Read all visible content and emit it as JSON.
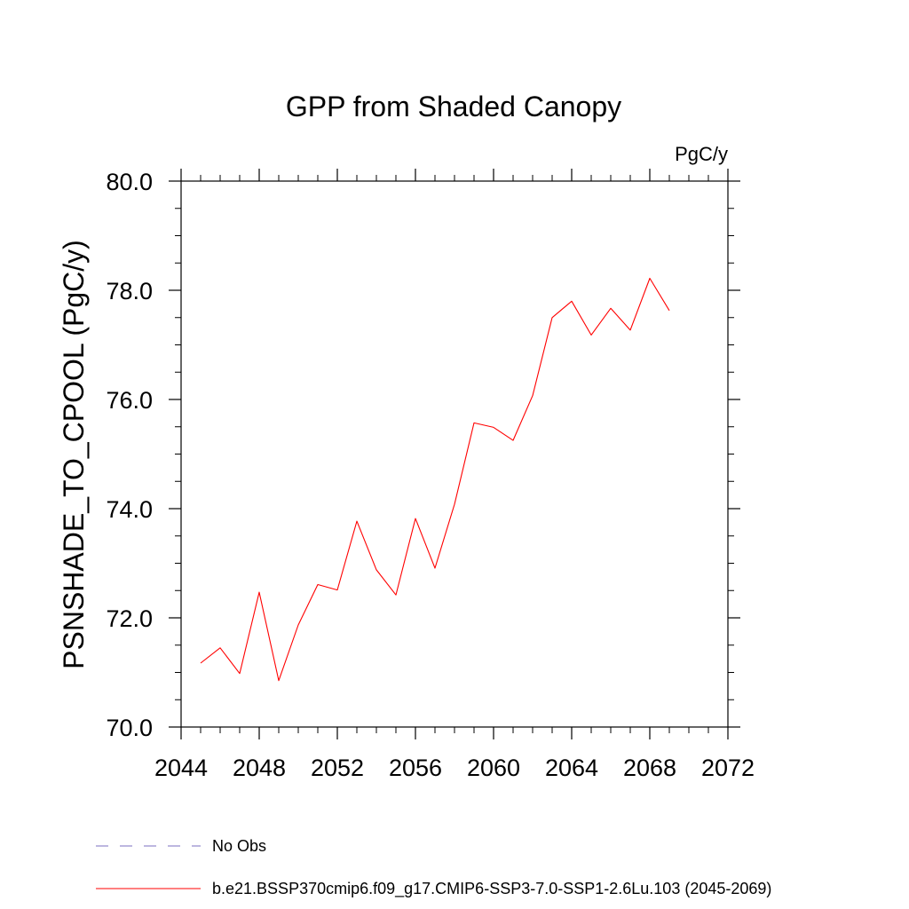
{
  "chart_data": {
    "type": "line",
    "title": "GPP from Shaded Canopy",
    "units": "PgC/y",
    "ylabel": "PSNSHADE_TO_CPOOL  (PgC/y)",
    "xlabel": "",
    "xlim": [
      2044,
      2072
    ],
    "ylim": [
      70.0,
      80.0
    ],
    "x_ticks": [
      2044,
      2048,
      2052,
      2056,
      2060,
      2064,
      2068,
      2072
    ],
    "x_tick_labels": [
      "2044",
      "2048",
      "2052",
      "2056",
      "2060",
      "2064",
      "2068",
      "2072"
    ],
    "y_ticks": [
      70,
      72,
      74,
      76,
      78,
      80
    ],
    "y_tick_labels": [
      "70.0",
      "72.0",
      "74.0",
      "76.0",
      "78.0",
      "80.0"
    ],
    "grid": false,
    "legend_position": "bottom",
    "series": [
      {
        "name": "b.e21.BSSP370cmip6.f09_g17.CMIP6-SSP3-7.0-SSP1-2.6Lu.103 (2045-2069)",
        "color": "#ff0000",
        "style": "solid",
        "x": [
          2045,
          2046,
          2047,
          2048,
          2049,
          2050,
          2051,
          2052,
          2053,
          2054,
          2055,
          2056,
          2057,
          2058,
          2059,
          2060,
          2061,
          2062,
          2063,
          2064,
          2065,
          2066,
          2067,
          2068,
          2069
        ],
        "y": [
          71.17,
          71.45,
          70.98,
          72.47,
          70.85,
          71.87,
          72.61,
          72.51,
          73.77,
          72.88,
          72.42,
          73.82,
          72.91,
          74.08,
          75.57,
          75.49,
          75.25,
          76.07,
          77.5,
          77.8,
          77.18,
          77.67,
          77.27,
          78.22,
          77.63
        ]
      }
    ],
    "legend": [
      {
        "label": "No Obs",
        "color": "#7b6fc0",
        "style": "dashed"
      },
      {
        "label": "b.e21.BSSP370cmip6.f09_g17.CMIP6-SSP3-7.0-SSP1-2.6Lu.103 (2045-2069)",
        "color": "#ff0000",
        "style": "solid"
      }
    ]
  }
}
